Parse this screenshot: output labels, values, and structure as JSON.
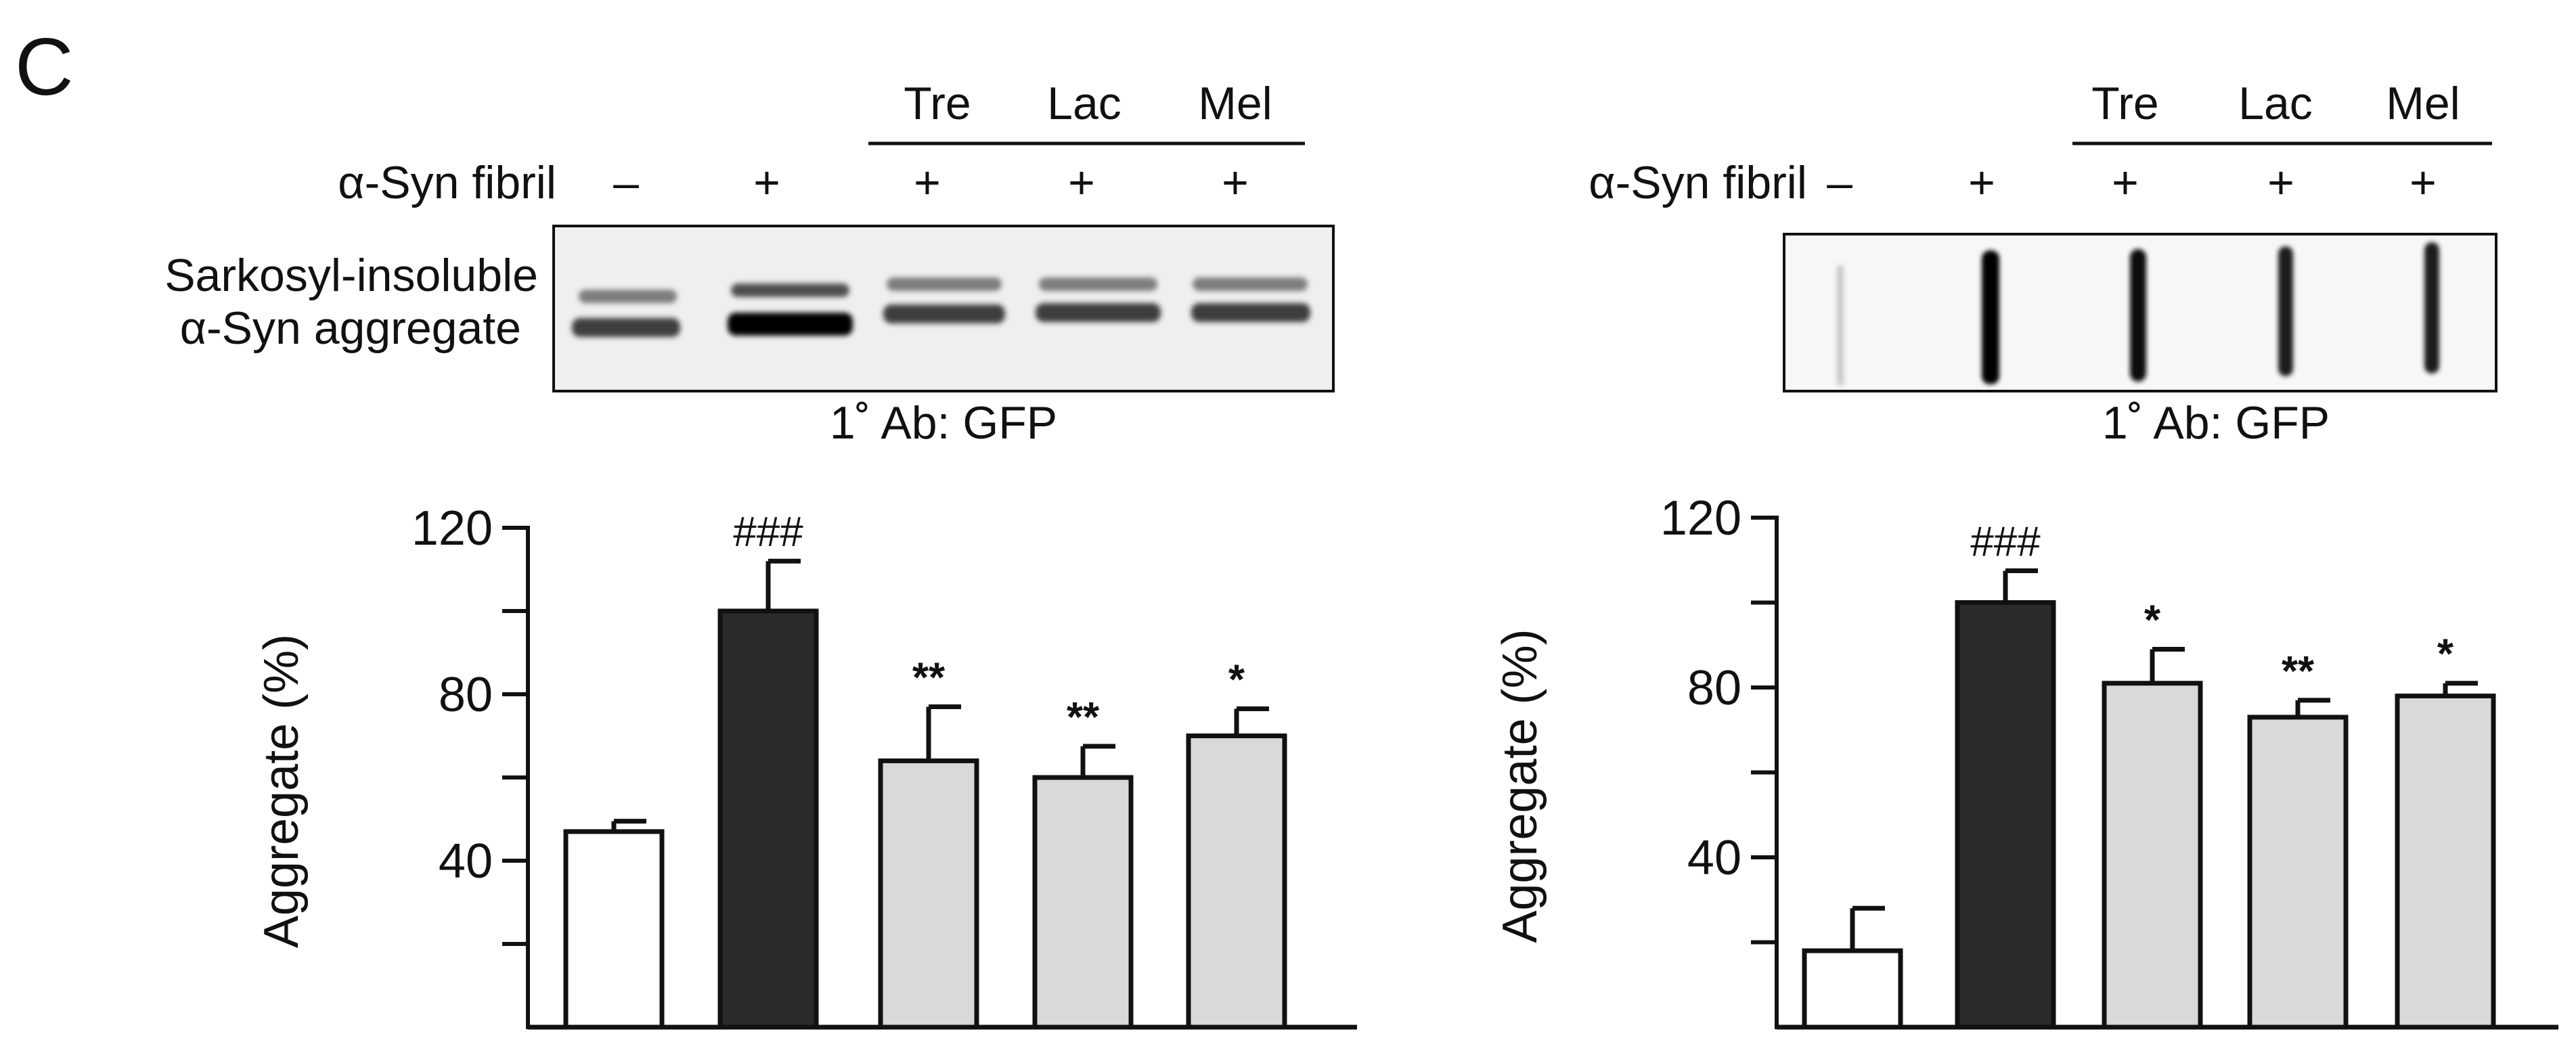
{
  "panel_letter": "C",
  "treatment_group": [
    "Tre",
    "Lac",
    "Mel"
  ],
  "fibril_label": "α-Syn fibril",
  "fibril_signs": [
    "–",
    "+",
    "+",
    "+",
    "+"
  ],
  "blot_label_line1": "Sarkosyl-insoluble",
  "blot_label_line2": "α-Syn aggregate",
  "antibody_label": "1˚ Ab: GFP",
  "colors": {
    "vehicle": "#ffffff",
    "fibril": "#2b2b2b",
    "sugar": "#d9d9d9",
    "axis": "#111111"
  },
  "chart_data": [
    {
      "type": "bar",
      "title": "",
      "xlabel": "",
      "ylabel": "Aggregate (%)",
      "ylim": [
        0,
        120
      ],
      "yticks": [
        40,
        80,
        120
      ],
      "yminor": [
        20,
        60,
        100
      ],
      "categories": [
        "–",
        "+",
        "Tre +",
        "Lac +",
        "Mel +"
      ],
      "values": [
        47,
        100,
        64,
        60,
        70
      ],
      "errors": [
        2.5,
        12,
        13,
        7.5,
        6.5
      ],
      "annotations": [
        "",
        "###",
        "**",
        "**",
        "*"
      ],
      "fills": [
        "vehicle",
        "fibril",
        "sugar",
        "sugar",
        "sugar"
      ]
    },
    {
      "type": "bar",
      "title": "",
      "xlabel": "",
      "ylabel": "Aggregate (%)",
      "ylim": [
        0,
        120
      ],
      "yticks": [
        40,
        80,
        120
      ],
      "yminor": [
        20,
        60,
        100
      ],
      "categories": [
        "–",
        "+",
        "Tre +",
        "Lac +",
        "Mel +"
      ],
      "values": [
        18,
        100,
        81,
        73,
        78
      ],
      "errors": [
        10,
        7.5,
        8,
        4,
        3
      ],
      "annotations": [
        "",
        "###",
        "*",
        "**",
        "*"
      ],
      "fills": [
        "vehicle",
        "fibril",
        "sugar",
        "sugar",
        "sugar"
      ]
    }
  ]
}
